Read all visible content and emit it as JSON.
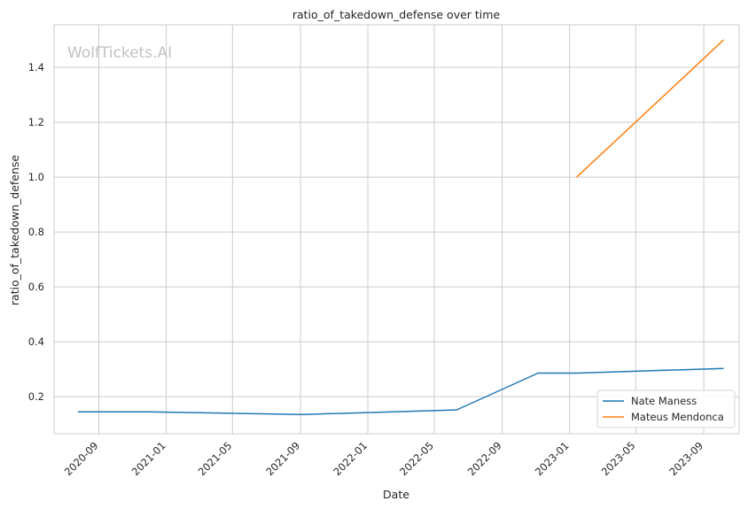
{
  "chart_data": {
    "type": "line",
    "title": "ratio_of_takedown_defense over time",
    "xlabel": "Date",
    "ylabel": "ratio_of_takedown_defense",
    "watermark": "WolfTickets.AI",
    "xlim": [
      "2020-06-12",
      "2023-11-04"
    ],
    "ylim": [
      0.065,
      1.555
    ],
    "x_ticks": [
      "2020-09",
      "2021-01",
      "2021-05",
      "2021-09",
      "2022-01",
      "2022-05",
      "2022-09",
      "2023-01",
      "2023-05",
      "2023-09"
    ],
    "y_ticks": [
      "0.2",
      "0.4",
      "0.6",
      "0.8",
      "1.0",
      "1.2",
      "1.4"
    ],
    "grid": true,
    "legend_position": "bottom-right",
    "series": [
      {
        "name": "Nate Maness",
        "color": "#1f77b4",
        "points": [
          {
            "x": "2020-07-25",
            "y": 0.145
          },
          {
            "x": "2020-11-28",
            "y": 0.145
          },
          {
            "x": "2021-09-04",
            "y": 0.135
          },
          {
            "x": "2022-06-11",
            "y": 0.152
          },
          {
            "x": "2022-11-05",
            "y": 0.286
          },
          {
            "x": "2023-01-14",
            "y": 0.286
          },
          {
            "x": "2023-10-07",
            "y": 0.303
          }
        ]
      },
      {
        "name": "Mateus Mendonca",
        "color": "#ff7f0e",
        "points": [
          {
            "x": "2023-01-14",
            "y": 1.0
          },
          {
            "x": "2023-10-07",
            "y": 1.5
          }
        ]
      }
    ]
  }
}
